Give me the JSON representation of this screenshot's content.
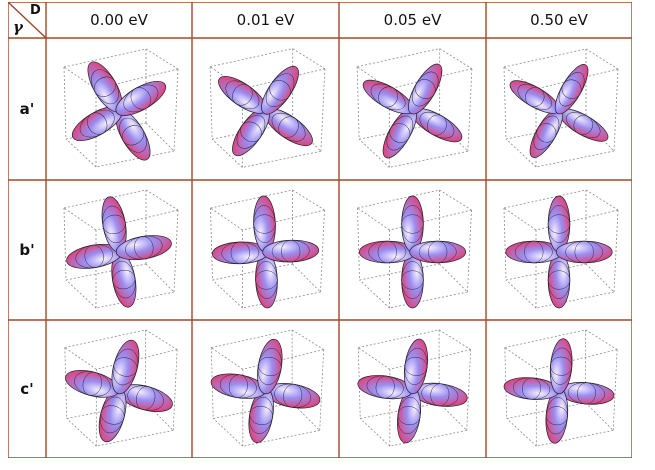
{
  "corner": {
    "col_symbol": "D",
    "row_symbol": "γ"
  },
  "columns": [
    "0.00 eV",
    "0.01 eV",
    "0.05 eV",
    "0.50 eV"
  ],
  "rows": [
    {
      "label": "a'",
      "orientations": [
        60,
        35,
        30,
        30
      ],
      "flatness": [
        0.45,
        0.42,
        0.38,
        0.34
      ]
    },
    {
      "label": "b'",
      "orientations": [
        80,
        88,
        90,
        90
      ],
      "flatness": [
        0.45,
        0.42,
        0.42,
        0.42
      ]
    },
    {
      "label": "c'",
      "orientations": [
        15,
        10,
        8,
        5
      ],
      "flatness": [
        0.5,
        0.48,
        0.45,
        0.42
      ]
    }
  ],
  "colors": {
    "grid": "#9c4a2a",
    "lobe_light": "#f8f0ff",
    "lobe_mid": "#9a8ef0",
    "lobe_dark": "#e0407a",
    "box": "#8a8a8a"
  }
}
